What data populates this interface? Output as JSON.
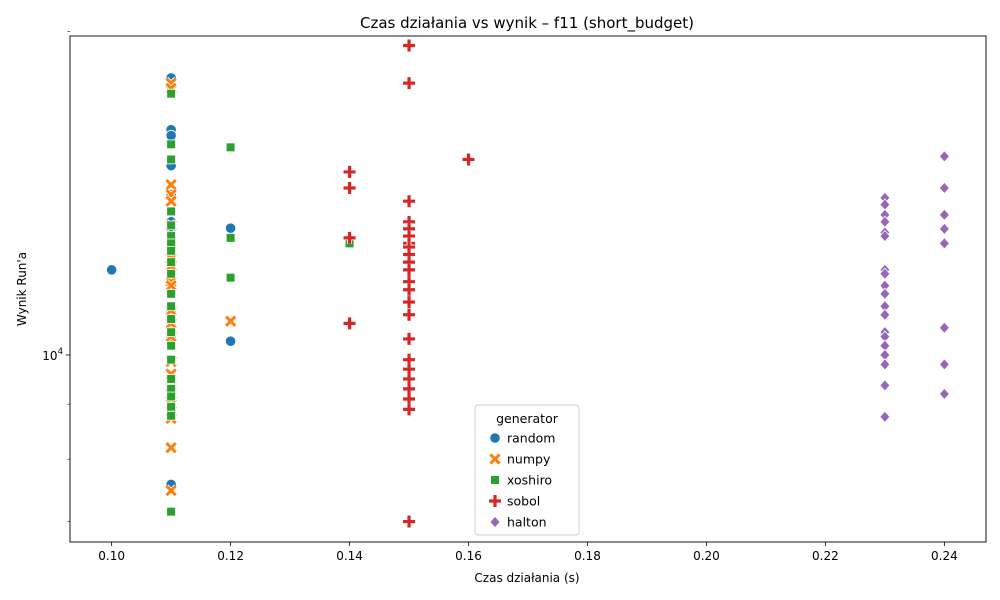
{
  "chart_data": {
    "type": "scatter",
    "title": "Czas działania vs wynik – f11 (short_budget)",
    "xlabel": "Czas działania (s)",
    "ylabel": "Wynik Run'a",
    "xlim": [
      0.093,
      0.247
    ],
    "ylim": [
      6700,
      19800
    ],
    "y_scale": "log",
    "x_ticks": [
      0.1,
      0.12,
      0.14,
      0.16,
      0.18,
      0.2,
      0.22,
      0.24
    ],
    "x_tick_labels": [
      "0.10",
      "0.12",
      "0.14",
      "0.16",
      "0.18",
      "0.20",
      "0.22",
      "0.24"
    ],
    "y_major_ticks": [
      10000
    ],
    "y_major_tick_labels": [
      "10^4"
    ],
    "y_minor_ticks": [
      7000,
      8000,
      9000,
      20000
    ],
    "grid": false,
    "legend_title": "generator",
    "legend_position": "bottom-center",
    "series": [
      {
        "name": "random",
        "color": "#1f77b4",
        "marker": "circle",
        "points": [
          [
            0.1,
            12000
          ],
          [
            0.11,
            18100
          ],
          [
            0.11,
            16200
          ],
          [
            0.11,
            16000
          ],
          [
            0.11,
            15000
          ],
          [
            0.11,
            14100
          ],
          [
            0.11,
            13300
          ],
          [
            0.11,
            13100
          ],
          [
            0.11,
            12700
          ],
          [
            0.11,
            12200
          ],
          [
            0.11,
            11400
          ],
          [
            0.11,
            11000
          ],
          [
            0.11,
            10700
          ],
          [
            0.11,
            10400
          ],
          [
            0.11,
            9300
          ],
          [
            0.11,
            9220
          ],
          [
            0.11,
            9200
          ],
          [
            0.11,
            8860
          ],
          [
            0.11,
            7580
          ],
          [
            0.12,
            13120
          ],
          [
            0.12,
            10300
          ]
        ]
      },
      {
        "name": "numpy",
        "color": "#ff7f0e",
        "marker": "x",
        "points": [
          [
            0.11,
            17900
          ],
          [
            0.11,
            17700
          ],
          [
            0.11,
            14400
          ],
          [
            0.11,
            14100
          ],
          [
            0.11,
            13900
          ],
          [
            0.11,
            13200
          ],
          [
            0.11,
            12300
          ],
          [
            0.11,
            12100
          ],
          [
            0.11,
            11700
          ],
          [
            0.11,
            11600
          ],
          [
            0.11,
            11000
          ],
          [
            0.11,
            10700
          ],
          [
            0.11,
            10400
          ],
          [
            0.11,
            9860
          ],
          [
            0.11,
            9600
          ],
          [
            0.11,
            9200
          ],
          [
            0.11,
            9000
          ],
          [
            0.11,
            8730
          ],
          [
            0.11,
            8200
          ],
          [
            0.11,
            7480
          ],
          [
            0.12,
            10750
          ]
        ]
      },
      {
        "name": "xoshiro",
        "color": "#2ca02c",
        "marker": "square",
        "points": [
          [
            0.11,
            17500
          ],
          [
            0.11,
            15700
          ],
          [
            0.11,
            15200
          ],
          [
            0.11,
            13600
          ],
          [
            0.11,
            13200
          ],
          [
            0.11,
            12900
          ],
          [
            0.11,
            12700
          ],
          [
            0.11,
            12500
          ],
          [
            0.11,
            12200
          ],
          [
            0.11,
            11900
          ],
          [
            0.11,
            11400
          ],
          [
            0.11,
            11100
          ],
          [
            0.11,
            10800
          ],
          [
            0.11,
            10500
          ],
          [
            0.11,
            10200
          ],
          [
            0.11,
            9900
          ],
          [
            0.11,
            9500
          ],
          [
            0.11,
            9300
          ],
          [
            0.11,
            9150
          ],
          [
            0.11,
            8950
          ],
          [
            0.11,
            8780
          ],
          [
            0.11,
            7150
          ],
          [
            0.12,
            15600
          ],
          [
            0.12,
            12850
          ],
          [
            0.12,
            11800
          ],
          [
            0.14,
            12700
          ]
        ]
      },
      {
        "name": "sobol",
        "color": "#d62728",
        "marker": "plus",
        "points": [
          [
            0.14,
            14800
          ],
          [
            0.14,
            14300
          ],
          [
            0.14,
            12850
          ],
          [
            0.14,
            10700
          ],
          [
            0.15,
            19400
          ],
          [
            0.15,
            17900
          ],
          [
            0.15,
            13900
          ],
          [
            0.15,
            13300
          ],
          [
            0.15,
            13100
          ],
          [
            0.15,
            12900
          ],
          [
            0.15,
            12700
          ],
          [
            0.15,
            12600
          ],
          [
            0.15,
            12400
          ],
          [
            0.15,
            12200
          ],
          [
            0.15,
            12000
          ],
          [
            0.15,
            11700
          ],
          [
            0.15,
            11500
          ],
          [
            0.15,
            11200
          ],
          [
            0.15,
            10900
          ],
          [
            0.15,
            10350
          ],
          [
            0.15,
            9900
          ],
          [
            0.15,
            9700
          ],
          [
            0.15,
            9500
          ],
          [
            0.15,
            9300
          ],
          [
            0.15,
            9100
          ],
          [
            0.15,
            8900
          ],
          [
            0.15,
            7000
          ],
          [
            0.16,
            15200
          ]
        ]
      },
      {
        "name": "halton",
        "color": "#9467bd",
        "marker": "diamond",
        "points": [
          [
            0.23,
            14000
          ],
          [
            0.23,
            13800
          ],
          [
            0.23,
            13500
          ],
          [
            0.23,
            13300
          ],
          [
            0.23,
            13000
          ],
          [
            0.23,
            12900
          ],
          [
            0.23,
            12000
          ],
          [
            0.23,
            11900
          ],
          [
            0.23,
            11600
          ],
          [
            0.23,
            11400
          ],
          [
            0.23,
            11100
          ],
          [
            0.23,
            10900
          ],
          [
            0.23,
            10500
          ],
          [
            0.23,
            10400
          ],
          [
            0.23,
            10200
          ],
          [
            0.23,
            10000
          ],
          [
            0.23,
            9800
          ],
          [
            0.23,
            9370
          ],
          [
            0.23,
            8760
          ],
          [
            0.24,
            15300
          ],
          [
            0.24,
            14300
          ],
          [
            0.24,
            13500
          ],
          [
            0.24,
            13100
          ],
          [
            0.24,
            12700
          ],
          [
            0.24,
            10600
          ],
          [
            0.24,
            9800
          ],
          [
            0.24,
            9200
          ]
        ]
      }
    ]
  }
}
